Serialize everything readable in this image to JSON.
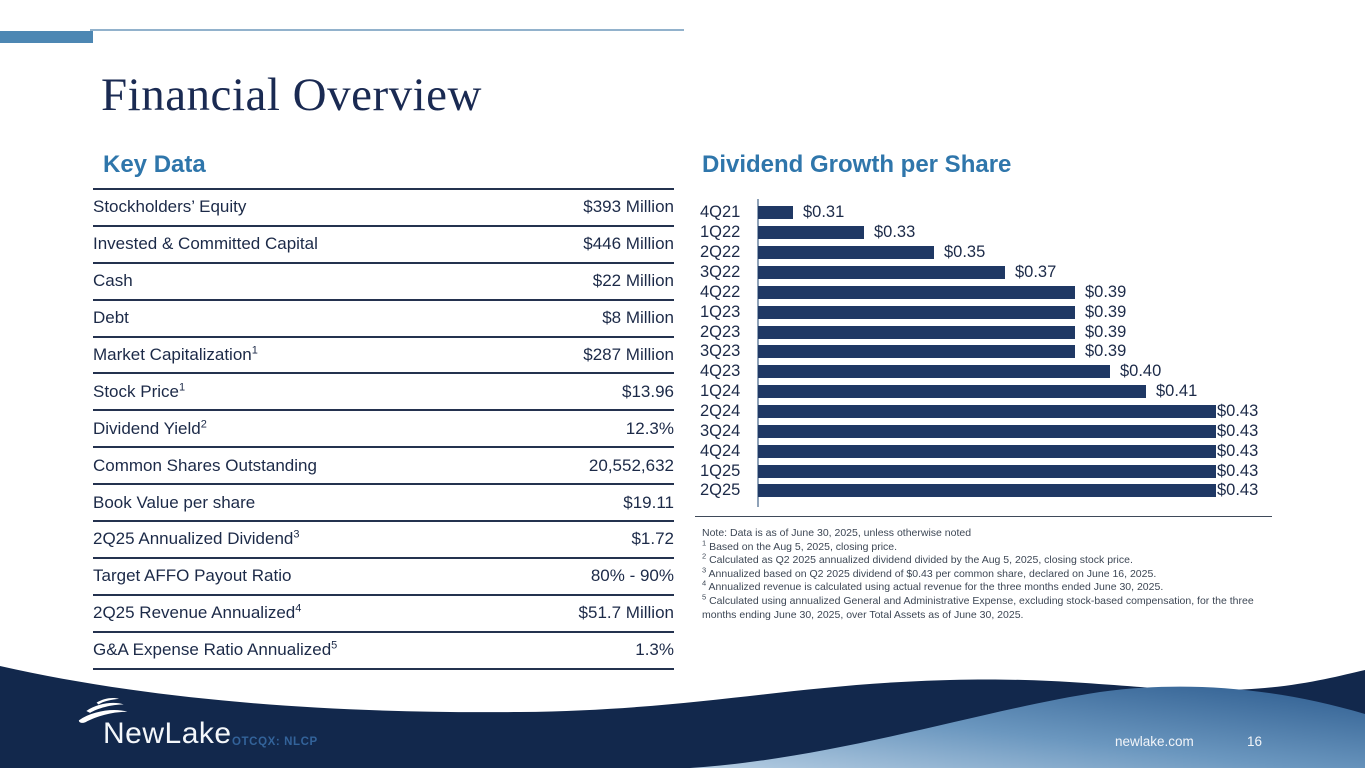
{
  "slide": {
    "title": "Financial Overview",
    "logo_text": "NewLake",
    "ticker": "OTCQX: NLCP",
    "website": "newlake.com",
    "page_number": "16"
  },
  "key_data": {
    "heading": "Key Data",
    "rows": [
      {
        "label": "Stockholders’ Equity",
        "sup": "",
        "value": "$393 Million"
      },
      {
        "label": "Invested & Committed Capital",
        "sup": "",
        "value": "$446 Million"
      },
      {
        "label": "Cash",
        "sup": "",
        "value": "$22 Million"
      },
      {
        "label": "Debt",
        "sup": "",
        "value": "$8 Million"
      },
      {
        "label": "Market Capitalization",
        "sup": "1",
        "value": "$287 Million"
      },
      {
        "label": "Stock Price",
        "sup": "1",
        "value": "$13.96"
      },
      {
        "label": "Dividend Yield",
        "sup": "2",
        "value": "12.3%"
      },
      {
        "label": "Common Shares Outstanding",
        "sup": "",
        "value": "20,552,632"
      },
      {
        "label": "Book Value per share",
        "sup": "",
        "value": "$19.11"
      },
      {
        "label": "2Q25 Annualized Dividend",
        "sup": "3",
        "value": "$1.72"
      },
      {
        "label": "Target AFFO Payout Ratio",
        "sup": "",
        "value": "80% - 90%"
      },
      {
        "label": "2Q25 Revenue Annualized",
        "sup": "4",
        "value": "$51.7 Million"
      },
      {
        "label": "G&A Expense Ratio Annualized",
        "sup": "5",
        "value": "1.3%"
      }
    ]
  },
  "chart_data": {
    "type": "bar",
    "orientation": "horizontal",
    "title": "Dividend Growth per Share",
    "categories": [
      "4Q21",
      "1Q22",
      "2Q22",
      "3Q22",
      "4Q22",
      "1Q23",
      "2Q23",
      "3Q23",
      "4Q23",
      "1Q24",
      "2Q24",
      "3Q24",
      "4Q24",
      "1Q25",
      "2Q25"
    ],
    "values": [
      0.31,
      0.33,
      0.35,
      0.37,
      0.39,
      0.39,
      0.39,
      0.39,
      0.4,
      0.41,
      0.43,
      0.43,
      0.43,
      0.43,
      0.43
    ],
    "value_labels": [
      "$0.31",
      "$0.33",
      "$0.35",
      "$0.37",
      "$0.39",
      "$0.39",
      "$0.39",
      "$0.39",
      "$0.40",
      "$0.41",
      "$0.43",
      "$0.43",
      "$0.43",
      "$0.43",
      "$0.43"
    ],
    "xlabel": "",
    "ylabel": "",
    "xlim": [
      0.3,
      0.43
    ],
    "grid": false,
    "legend": false,
    "bar_color": "#1f3864"
  },
  "footnotes": [
    {
      "sup": "",
      "text": "Note: Data is as of June 30, 2025, unless otherwise noted"
    },
    {
      "sup": "1",
      "text": "Based on the Aug 5, 2025, closing price."
    },
    {
      "sup": "2",
      "text": "Calculated as Q2 2025 annualized dividend divided by the Aug 5, 2025, closing stock price."
    },
    {
      "sup": "3",
      "text": "Annualized based on Q2 2025 dividend of $0.43 per common share, declared on June 16, 2025."
    },
    {
      "sup": "4",
      "text": "Annualized revenue is calculated using actual revenue for the three months ended June 30, 2025."
    },
    {
      "sup": "5",
      "text": "Calculated using annualized General and Administrative Expense, excluding stock-based compensation, for the three months ending June 30, 2025, over Total Assets as of June 30, 2025."
    }
  ],
  "colors": {
    "title_navy": "#1a2a52",
    "heading_blue": "#2f76ab",
    "table_border_navy": "#24324f",
    "bar_navy": "#1f3864",
    "footer_navy": "#12284c",
    "accent_steel_blue": "#4d87b3",
    "footer_gradient_light": "#b5cde2",
    "footer_gradient_dark": "#2d5c8f"
  }
}
